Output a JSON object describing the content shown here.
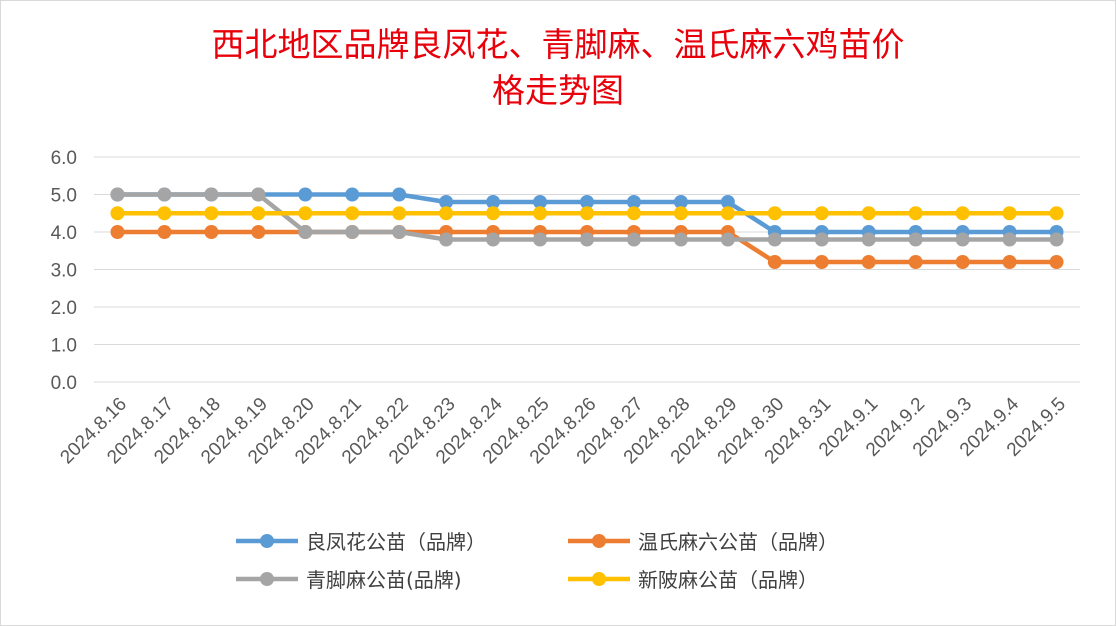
{
  "chart_data": {
    "type": "line",
    "title_line1": "西北地区品牌良凤花、青脚麻、温氏麻六鸡苗价",
    "title_line2": "格走势图",
    "categories": [
      "2024.8.16",
      "2024.8.17",
      "2024.8.18",
      "2024.8.19",
      "2024.8.20",
      "2024.8.21",
      "2024.8.22",
      "2024.8.23",
      "2024.8.24",
      "2024.8.25",
      "2024.8.26",
      "2024.8.27",
      "2024.8.28",
      "2024.8.29",
      "2024.8.30",
      "2024.8.31",
      "2024.9.1",
      "2024.9.2",
      "2024.9.3",
      "2024.9.4",
      "2024.9.5"
    ],
    "y_ticks": [
      "0.0",
      "1.0",
      "2.0",
      "3.0",
      "4.0",
      "5.0",
      "6.0"
    ],
    "ylim": [
      0,
      6
    ],
    "grid": true,
    "legend_position": "bottom",
    "series": [
      {
        "name": "良凤花公苗（品牌）",
        "color": "#5b9bd5",
        "values": [
          5.0,
          5.0,
          5.0,
          5.0,
          5.0,
          5.0,
          5.0,
          4.8,
          4.8,
          4.8,
          4.8,
          4.8,
          4.8,
          4.8,
          4.0,
          4.0,
          4.0,
          4.0,
          4.0,
          4.0,
          4.0
        ]
      },
      {
        "name": "温氏麻六公苗（品牌）",
        "color": "#ed7d31",
        "values": [
          4.0,
          4.0,
          4.0,
          4.0,
          4.0,
          4.0,
          4.0,
          4.0,
          4.0,
          4.0,
          4.0,
          4.0,
          4.0,
          4.0,
          3.2,
          3.2,
          3.2,
          3.2,
          3.2,
          3.2,
          3.2
        ]
      },
      {
        "name": "青脚麻公苗(品牌)",
        "color": "#a5a5a5",
        "values": [
          5.0,
          5.0,
          5.0,
          5.0,
          4.0,
          4.0,
          4.0,
          3.8,
          3.8,
          3.8,
          3.8,
          3.8,
          3.8,
          3.8,
          3.8,
          3.8,
          3.8,
          3.8,
          3.8,
          3.8,
          3.8
        ]
      },
      {
        "name": "新陂麻公苗（品牌）",
        "color": "#ffc000",
        "values": [
          4.5,
          4.5,
          4.5,
          4.5,
          4.5,
          4.5,
          4.5,
          4.5,
          4.5,
          4.5,
          4.5,
          4.5,
          4.5,
          4.5,
          4.5,
          4.5,
          4.5,
          4.5,
          4.5,
          4.5,
          4.5
        ]
      }
    ]
  }
}
